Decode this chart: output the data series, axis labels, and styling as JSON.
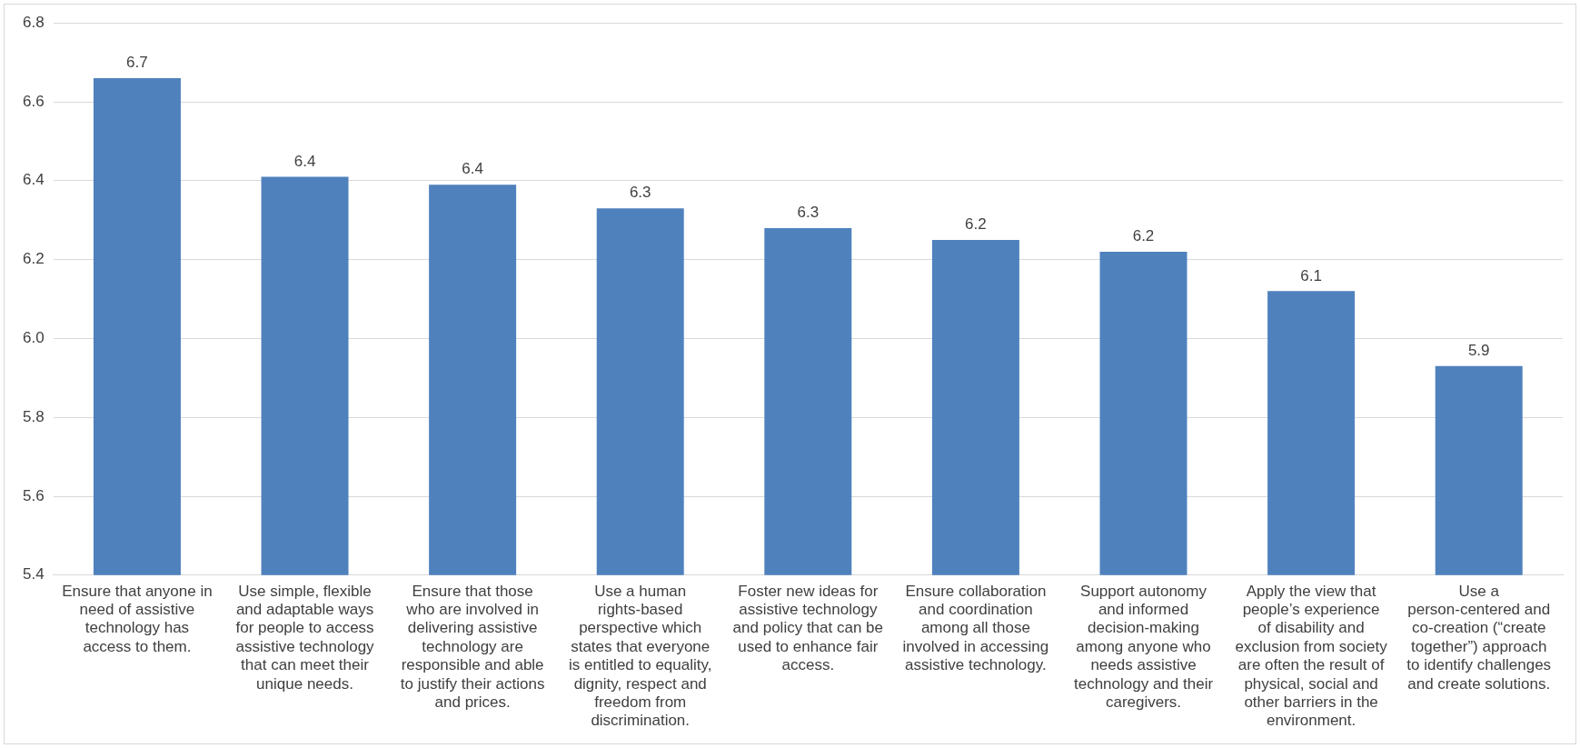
{
  "chart_data": {
    "type": "bar",
    "categories": [
      "Ensure that anyone in need of assistive technology has access to them.",
      "Use simple, flexible and adaptable ways for people to access assistive technology that can meet their unique needs.",
      "Ensure that those who are involved in delivering assistive technology are responsible and able to justify their actions and prices.",
      "Use a human rights-based perspective which states that everyone is entitled to equality, dignity, respect and freedom from discrimination.",
      "Foster new ideas for assistive technology and policy that can be used to enhance fair access.",
      "Ensure collaboration and coordination among all those involved in accessing assistive technology.",
      "Support autonomy and informed decision-making among anyone who needs assistive technology and their caregivers.",
      "Apply the view that people’s experience of disability and exclusion from society are often the result of physical, social and other barriers in the environment.",
      "Use a person-centered and co-creation (“create together”) approach to identify challenges and create solutions."
    ],
    "values": [
      6.66,
      6.41,
      6.39,
      6.33,
      6.28,
      6.25,
      6.22,
      6.12,
      5.93
    ],
    "value_labels": [
      "6.7",
      "6.4",
      "6.4",
      "6.3",
      "6.3",
      "6.2",
      "6.2",
      "6.1",
      "5.9"
    ],
    "color": "#4f81bd",
    "ylim": [
      5.4,
      6.8
    ],
    "yticks": [
      5.4,
      5.6,
      5.8,
      {
        "value": 6,
        "label": "6.0"
      },
      6.2,
      6.4,
      6.6,
      6.8
    ],
    "grid": "y",
    "legend": false
  }
}
